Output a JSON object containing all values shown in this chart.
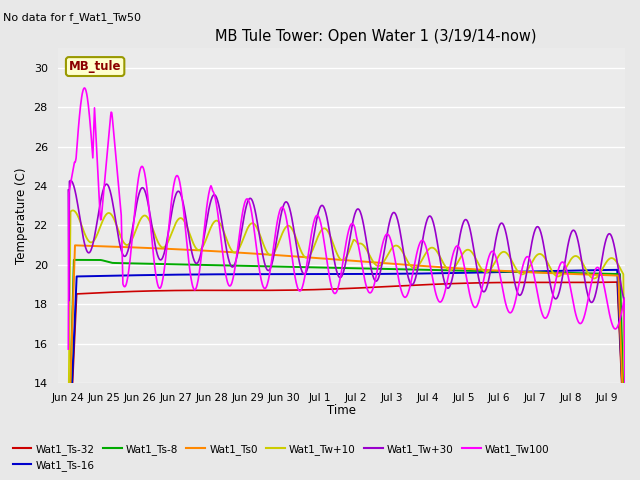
{
  "title": "MB Tule Tower: Open Water 1 (3/19/14-now)",
  "subtitle": "No data for f_Wat1_Tw50",
  "xlabel": "Time",
  "ylabel": "Temperature (C)",
  "ylim": [
    14,
    31
  ],
  "yticks": [
    14,
    16,
    18,
    20,
    22,
    24,
    26,
    28,
    30
  ],
  "bg_color": "#e8e8e8",
  "plot_bg_color": "#ebebeb",
  "legend_box_label": "MB_tule",
  "legend_box_color": "#ffffcc",
  "legend_box_border_color": "#999900",
  "legend_box_text_color": "#8b0000",
  "colors": {
    "Wat1_Ts-32": "#cc0000",
    "Wat1_Ts-16": "#0000cc",
    "Wat1_Ts-8": "#00aa00",
    "Wat1_Ts0": "#ff8800",
    "Wat1_Tw+10": "#cccc00",
    "Wat1_Tw+30": "#9900cc",
    "Wat1_Tw100": "#ff00ff"
  },
  "x_ticks_labels": [
    "Jun 24",
    "Jun 25",
    "Jun 26",
    "Jun 27",
    "Jun 28",
    "Jun 29",
    "Jun 30",
    "Jul 1",
    "Jul 2",
    "Jul 3",
    "Jul 4",
    "Jul 5",
    "Jul 6",
    "Jul 7",
    "Jul 8",
    "Jul 9"
  ],
  "x_ticks_pos": [
    0,
    1,
    2,
    3,
    4,
    5,
    6,
    7,
    8,
    9,
    10,
    11,
    12,
    13,
    14,
    15
  ],
  "figsize": [
    6.4,
    4.8
  ],
  "dpi": 100
}
